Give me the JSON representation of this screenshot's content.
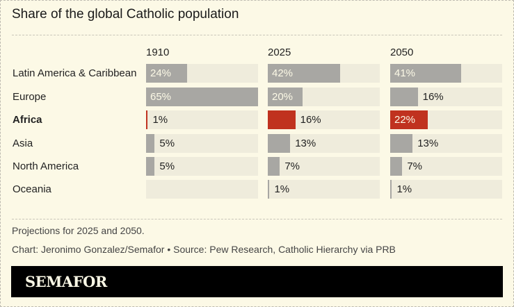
{
  "chart_data": {
    "type": "bar",
    "title": "Share of the global Catholic population",
    "categories": [
      "Latin America & Caribbean",
      "Europe",
      "Africa",
      "Asia",
      "North America",
      "Oceania"
    ],
    "highlight": "Africa",
    "xlim": [
      0,
      65
    ],
    "panels": [
      {
        "year": "1910",
        "values": [
          24,
          65,
          1,
          5,
          5,
          null
        ],
        "labels": [
          "24%",
          "65%",
          "1%",
          "5%",
          "5%",
          ""
        ]
      },
      {
        "year": "2025",
        "values": [
          42,
          20,
          16,
          13,
          7,
          1
        ],
        "labels": [
          "42%",
          "20%",
          "16%",
          "13%",
          "7%",
          "1%"
        ]
      },
      {
        "year": "2050",
        "values": [
          41,
          16,
          22,
          13,
          7,
          1
        ],
        "labels": [
          "41%",
          "16%",
          "22%",
          "13%",
          "7%",
          "1%"
        ]
      }
    ],
    "colors": {
      "bar": "#a8a7a3",
      "highlight": "#c0321f",
      "track": "#efecdc",
      "background": "#fcf9e6"
    }
  },
  "notes": {
    "projection": "Projections for 2025 and 2050.",
    "credit": "Chart: Jeronimo Gonzalez/Semafor • Source: Pew Research, Catholic Hierarchy via PRB"
  },
  "brand": {
    "logo": "SEMAFOR"
  }
}
